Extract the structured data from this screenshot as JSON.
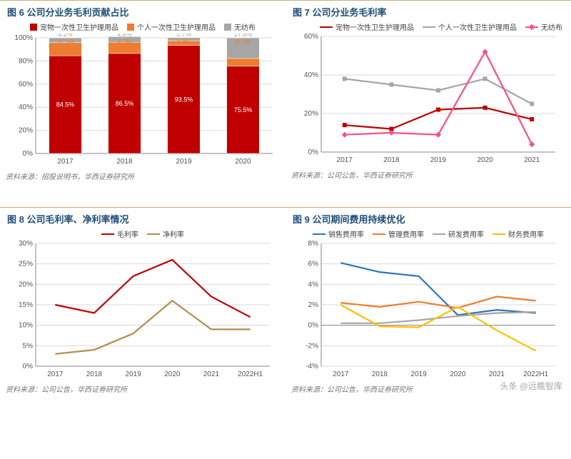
{
  "colors": {
    "title": "#1f4e79",
    "red": "#c00000",
    "orange": "#ed7d31",
    "gray": "#a6a6a6",
    "pink": "#ff4d8b",
    "tan": "#b08e4a",
    "blue": "#2e75b6",
    "yellow": "#ffc000",
    "grid": "#d9d9d9",
    "axis": "#888888",
    "bg": "#ffffff"
  },
  "watermark": "头条 @远瞻智库",
  "chart6": {
    "title": "图 6 公司分业务毛利贡献占比",
    "type": "stacked-bar",
    "source": "资料来源：招股说明书，华西证券研究所",
    "categories": [
      "2017",
      "2018",
      "2019",
      "2020"
    ],
    "ylim": [
      0,
      100
    ],
    "ytick_step": 20,
    "y_suffix": "%",
    "series": [
      {
        "name": "宠物一次性卫生护理用品",
        "color": "#c00000",
        "values": [
          84.5,
          86.5,
          93.5,
          75.5
        ]
      },
      {
        "name": "个人一次性卫生护理用品",
        "color": "#ed7d31",
        "values": [
          11.3,
          9.7,
          4.0,
          6.7
        ]
      },
      {
        "name": "无纺布",
        "color": "#a6a6a6",
        "values": [
          4.2,
          4.8,
          2.7,
          17.8
        ]
      }
    ],
    "top_labels": [
      [
        {
          "v": "4.2%",
          "c": "#a6a6a6"
        },
        {
          "v": "11.3%",
          "c": "#ed7d31"
        }
      ],
      [
        {
          "v": "4.8%",
          "c": "#a6a6a6"
        },
        {
          "v": "9.7%",
          "c": "#ed7d31"
        }
      ],
      [
        {
          "v": "2.7%",
          "c": "#a6a6a6"
        },
        {
          "v": "4.0%",
          "c": "#ed7d31"
        }
      ],
      [
        {
          "v": "17.8%",
          "c": "#a6a6a6"
        },
        {
          "v": "6.7%",
          "c": "#ed7d31"
        }
      ]
    ],
    "mid_labels": [
      "84.5%",
      "86.5%",
      "93.5%",
      "75.5%"
    ],
    "bar_width": 0.55
  },
  "chart7": {
    "title": "图 7 公司分业务毛利率",
    "type": "line",
    "source": "资料来源：公司公告，华西证券研究所",
    "categories": [
      "2017",
      "2018",
      "2019",
      "2020",
      "2021"
    ],
    "ylim": [
      0,
      60
    ],
    "ytick_step": 20,
    "y_suffix": "%",
    "series": [
      {
        "name": "宠物一次性卫生护理用品",
        "color": "#c00000",
        "marker": "square",
        "values": [
          14,
          12,
          22,
          23,
          17
        ]
      },
      {
        "name": "个人一次性卫生护理用品",
        "color": "#a6a6a6",
        "marker": "square",
        "values": [
          38,
          35,
          32,
          38,
          25
        ]
      },
      {
        "name": "无纺布",
        "color": "#ff4d8b",
        "marker": "diamond",
        "values": [
          9,
          10,
          9,
          52,
          4
        ]
      }
    ]
  },
  "chart8": {
    "title": "图 8 公司毛利率、净利率情况",
    "type": "line",
    "source": "资料来源：公司公告，华西证券研究所",
    "categories": [
      "2017",
      "2018",
      "2019",
      "2020",
      "2021",
      "2022H1"
    ],
    "ylim": [
      0,
      30
    ],
    "ytick_step": 5,
    "y_suffix": "%",
    "series": [
      {
        "name": "毛利率",
        "color": "#c00000",
        "values": [
          15,
          13,
          22,
          26,
          17,
          12
        ]
      },
      {
        "name": "净利率",
        "color": "#b08e4a",
        "values": [
          3,
          4,
          8,
          16,
          9,
          9
        ]
      }
    ]
  },
  "chart9": {
    "title": "图 9 公司期间费用持续优化",
    "type": "line",
    "source": "资料来源：公司公告，华西证券研究所",
    "categories": [
      "2017",
      "2018",
      "2019",
      "2020",
      "2021",
      "2022H1"
    ],
    "ylim": [
      -4,
      8
    ],
    "ytick_step": 2,
    "y_suffix": "%",
    "series": [
      {
        "name": "销售费用率",
        "color": "#2e75b6",
        "values": [
          6.1,
          5.2,
          4.8,
          1.0,
          1.5,
          1.2
        ]
      },
      {
        "name": "管理费用率",
        "color": "#ed7d31",
        "values": [
          2.2,
          1.8,
          2.3,
          1.7,
          2.8,
          2.4
        ]
      },
      {
        "name": "研发费用率",
        "color": "#a6a6a6",
        "values": [
          0.2,
          0.2,
          0.5,
          0.9,
          1.2,
          1.3
        ]
      },
      {
        "name": "财务费用率",
        "color": "#ffc000",
        "values": [
          2.0,
          -0.1,
          -0.2,
          1.8,
          -0.5,
          -2.5
        ]
      }
    ]
  }
}
